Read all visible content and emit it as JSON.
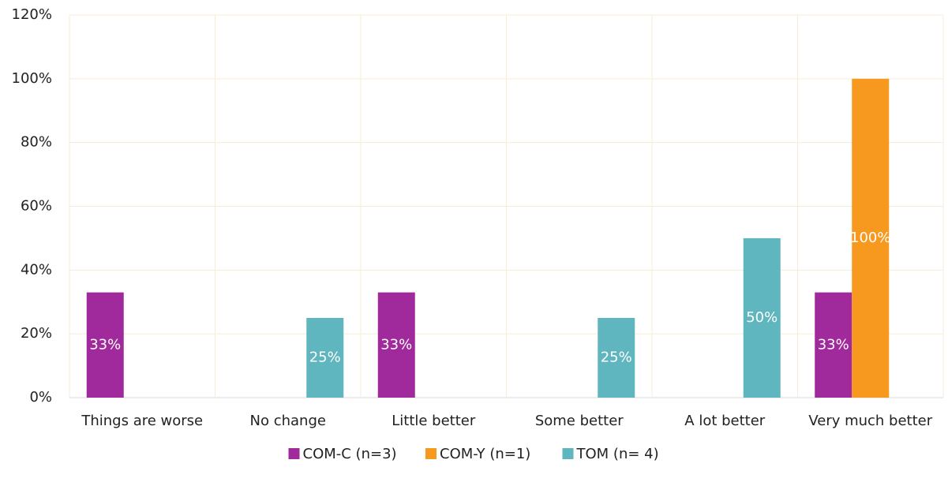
{
  "chart_data": {
    "type": "bar",
    "categories": [
      "Things are worse",
      "No change",
      "Little better",
      "Some better",
      "A lot better",
      "Very much better"
    ],
    "series": [
      {
        "name": "COM-C (n=3)",
        "color": "#a0299b",
        "values": [
          33,
          null,
          33,
          null,
          null,
          33
        ],
        "value_labels": [
          "33%",
          null,
          "33%",
          null,
          null,
          "33%"
        ]
      },
      {
        "name": "COM-Y (n=1)",
        "color": "#f7991e",
        "values": [
          null,
          null,
          null,
          null,
          null,
          100
        ],
        "value_labels": [
          null,
          null,
          null,
          null,
          null,
          "100%"
        ]
      },
      {
        "name": "TOM (n= 4)",
        "color": "#5fb6be",
        "values": [
          null,
          25,
          null,
          25,
          50,
          null
        ],
        "value_labels": [
          null,
          "25%",
          null,
          "25%",
          "50%",
          null
        ]
      }
    ],
    "ylim": [
      0,
      120
    ],
    "yticks": [
      {
        "value": 0,
        "label": "0%"
      },
      {
        "value": 20,
        "label": "20%"
      },
      {
        "value": 40,
        "label": "40%"
      },
      {
        "value": 60,
        "label": "60%"
      },
      {
        "value": 80,
        "label": "80%"
      },
      {
        "value": 100,
        "label": "100%"
      },
      {
        "value": 120,
        "label": "120%"
      }
    ],
    "grid": true,
    "legend": "bottom"
  }
}
